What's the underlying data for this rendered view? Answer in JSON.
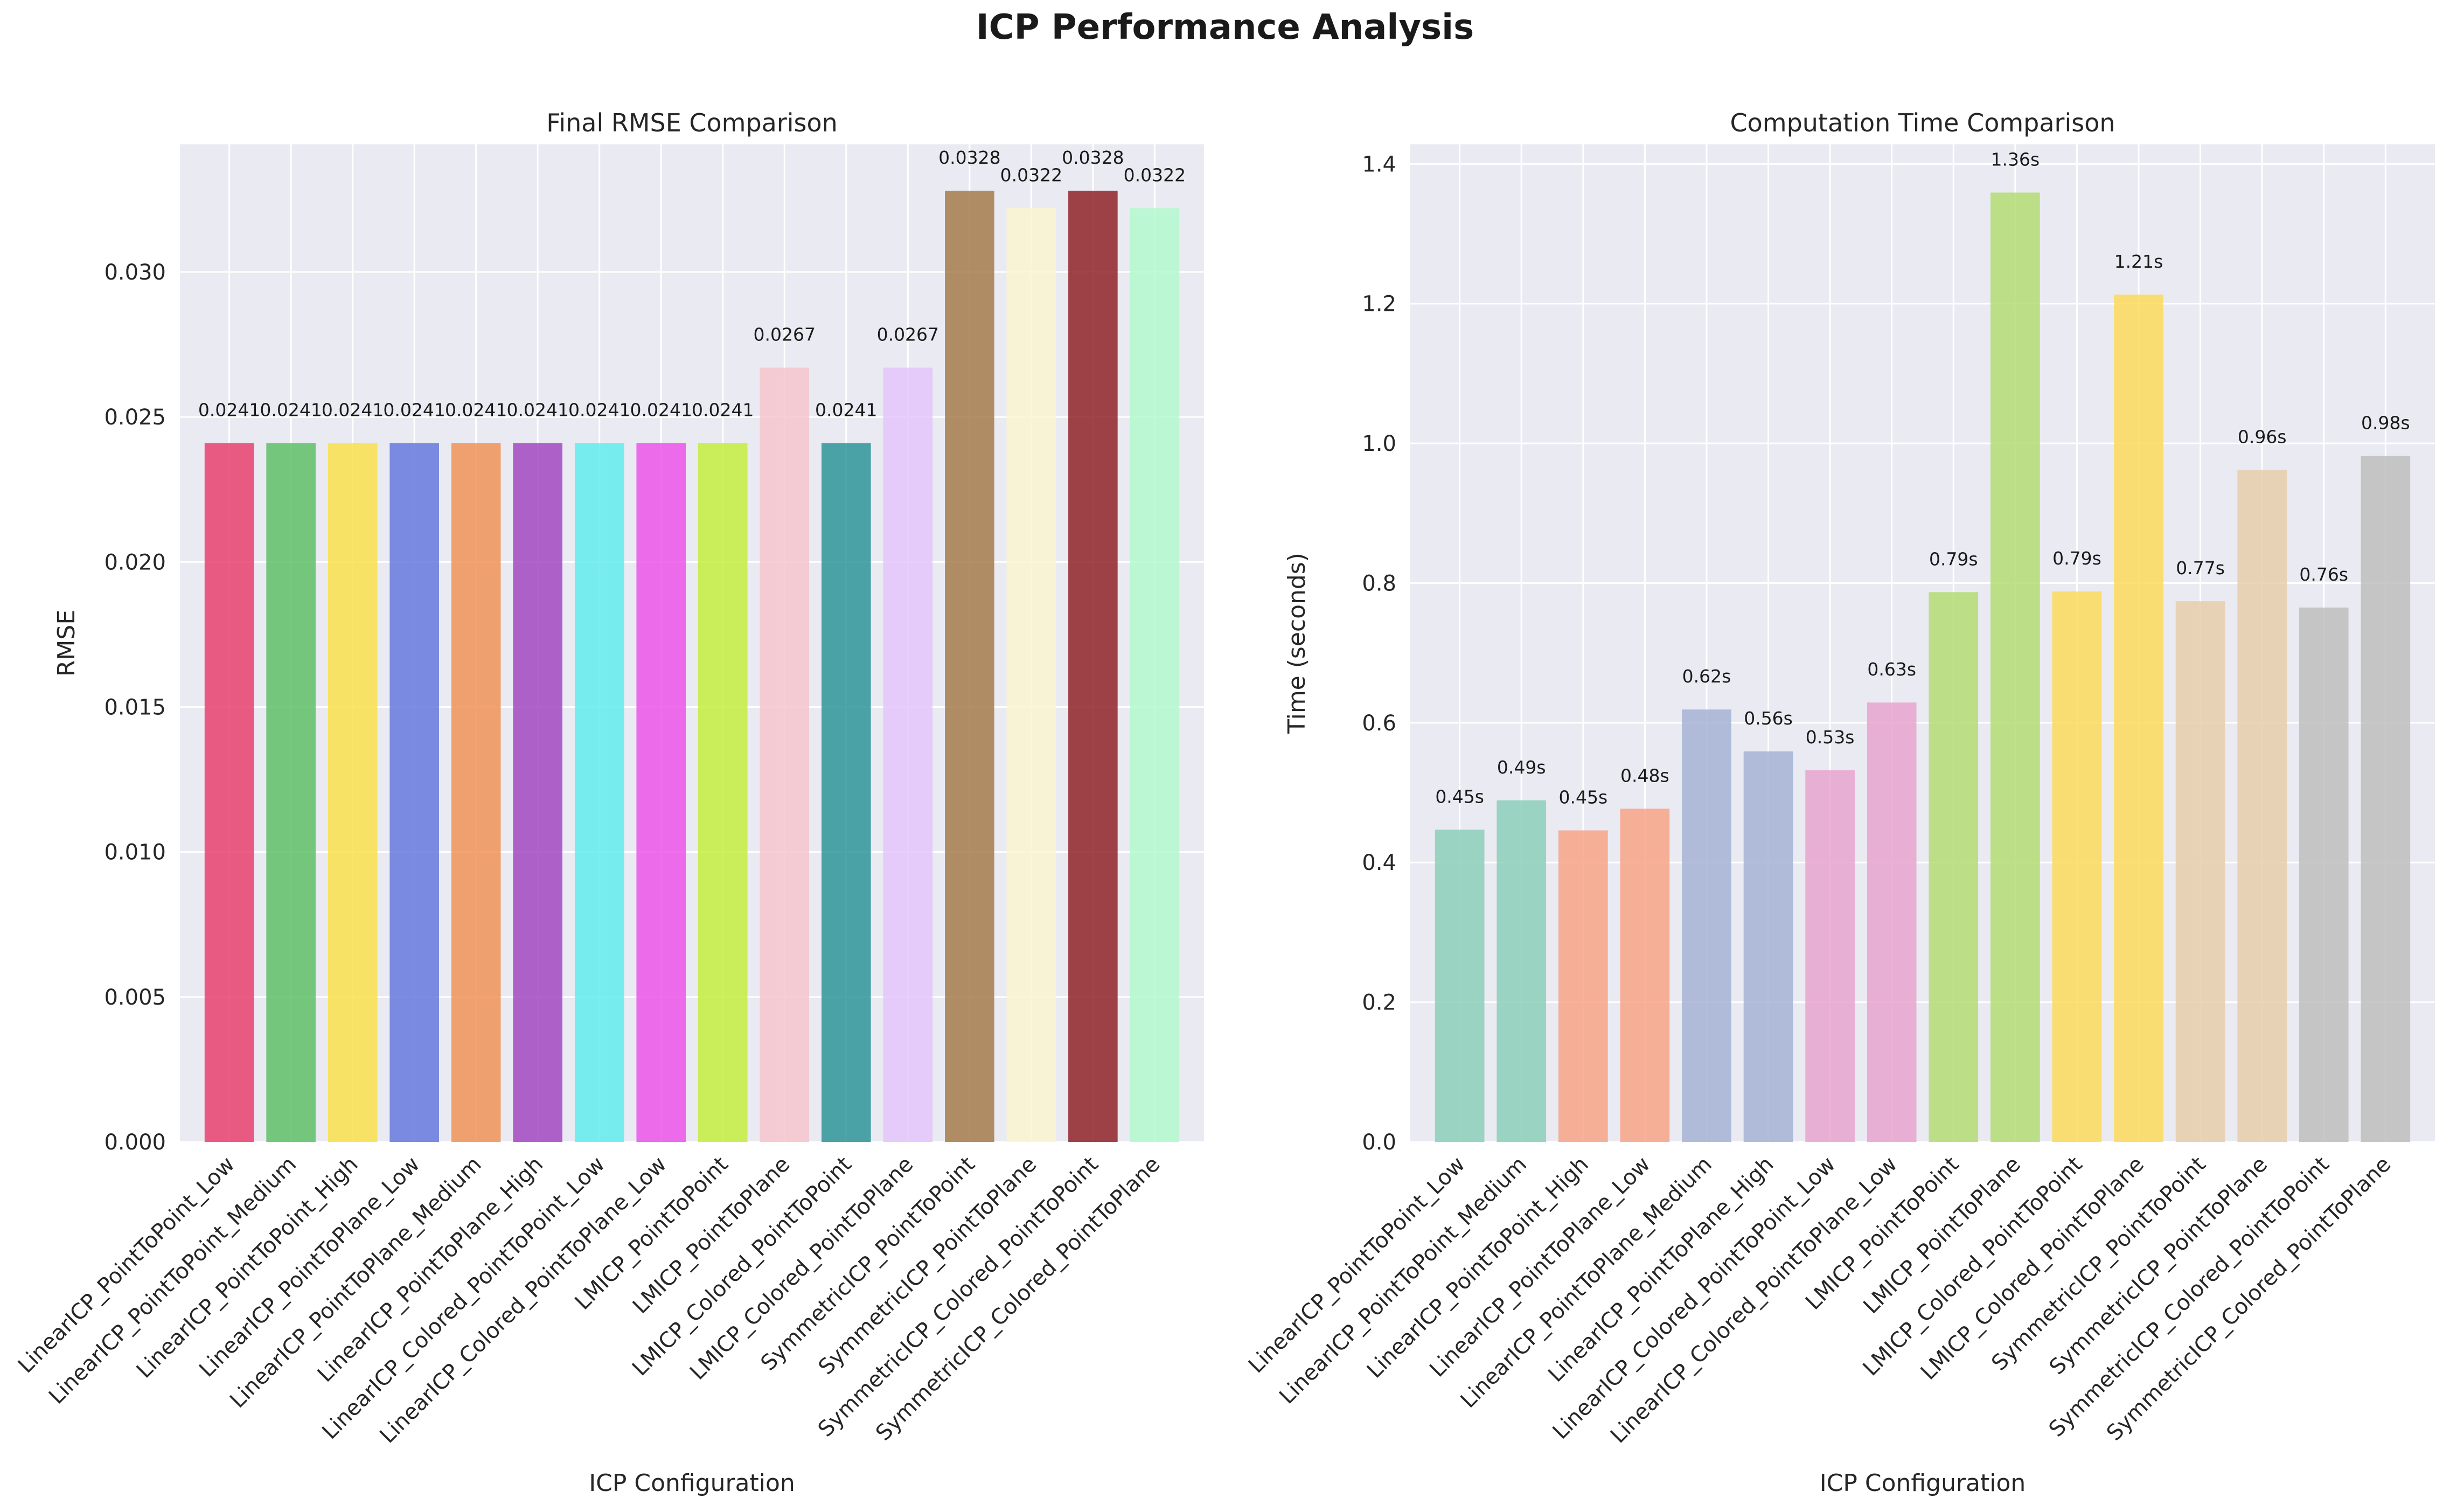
{
  "suptitle": "ICP Performance Analysis",
  "chart_data": [
    {
      "type": "bar",
      "title": "Final RMSE Comparison",
      "xlabel": "ICP Configuration",
      "ylabel": "RMSE",
      "ylim": [
        0,
        0.0344
      ],
      "yticks": [
        0.0,
        0.005,
        0.01,
        0.015,
        0.02,
        0.025,
        0.03
      ],
      "ytick_labels": [
        "0.000",
        "0.005",
        "0.010",
        "0.015",
        "0.020",
        "0.025",
        "0.030"
      ],
      "grid": true,
      "categories": [
        "LinearICP_PointToPoint_Low",
        "LinearICP_PointToPoint_Medium",
        "LinearICP_PointToPoint_High",
        "LinearICP_PointToPlane_Low",
        "LinearICP_PointToPlane_Medium",
        "LinearICP_PointToPlane_High",
        "LinearICP_Colored_PointToPoint_Low",
        "LinearICP_Colored_PointToPlane_Low",
        "LMICP_PointToPoint",
        "LMICP_PointToPlane",
        "LMICP_Colored_PointToPoint",
        "LMICP_Colored_PointToPlane",
        "SymmetricICP_PointToPoint",
        "SymmetricICP_PointToPlane",
        "SymmetricICP_Colored_PointToPoint",
        "SymmetricICP_Colored_PointToPlane"
      ],
      "values": [
        0.0241,
        0.0241,
        0.0241,
        0.0241,
        0.0241,
        0.0241,
        0.0241,
        0.0241,
        0.0241,
        0.0267,
        0.0241,
        0.0267,
        0.0328,
        0.0322,
        0.0328,
        0.0322
      ],
      "value_labels": [
        "0.0241",
        "0.0241",
        "0.0241",
        "0.0241",
        "0.0241",
        "0.0241",
        "0.0241",
        "0.0241",
        "0.0241",
        "0.0267",
        "0.0241",
        "0.0267",
        "0.0328",
        "0.0322",
        "0.0328",
        "0.0322"
      ],
      "colors": [
        "#e8416d",
        "#5fc068",
        "#f9e04c",
        "#6579dd",
        "#f09358",
        "#a348c2",
        "#63ecef",
        "#eb55e9",
        "#c4ed3f",
        "#f6c6cc",
        "#2f9599",
        "#e4c5fa",
        "#a67b4c",
        "#faf5cf",
        "#8f2329",
        "#b3f9cc"
      ]
    },
    {
      "type": "bar",
      "title": "Computation Time Comparison",
      "xlabel": "ICP Configuration",
      "ylabel": "Time (seconds)",
      "ylim": [
        0,
        1.428
      ],
      "yticks": [
        0.0,
        0.2,
        0.4,
        0.6,
        0.8,
        1.0,
        1.2,
        1.4
      ],
      "ytick_labels": [
        "0.0",
        "0.2",
        "0.4",
        "0.6",
        "0.8",
        "1.0",
        "1.2",
        "1.4"
      ],
      "grid": true,
      "categories": [
        "LinearICP_PointToPoint_Low",
        "LinearICP_PointToPoint_Medium",
        "LinearICP_PointToPoint_High",
        "LinearICP_PointToPlane_Low",
        "LinearICP_PointToPlane_Medium",
        "LinearICP_PointToPlane_High",
        "LinearICP_Colored_PointToPoint_Low",
        "LinearICP_Colored_PointToPlane_Low",
        "LMICP_PointToPoint",
        "LMICP_PointToPlane",
        "LMICP_Colored_PointToPoint",
        "LMICP_Colored_PointToPlane",
        "SymmetricICP_PointToPoint",
        "SymmetricICP_PointToPlane",
        "SymmetricICP_Colored_PointToPoint",
        "SymmetricICP_Colored_PointToPlane"
      ],
      "values": [
        0.447,
        0.489,
        0.446,
        0.477,
        0.619,
        0.559,
        0.532,
        0.629,
        0.787,
        1.359,
        0.788,
        1.213,
        0.774,
        0.962,
        0.765,
        0.982
      ],
      "value_labels": [
        "0.45s",
        "0.49s",
        "0.45s",
        "0.48s",
        "0.62s",
        "0.56s",
        "0.53s",
        "0.63s",
        "0.79s",
        "1.36s",
        "0.79s",
        "1.21s",
        "0.77s",
        "0.96s",
        "0.76s",
        "0.98s"
      ],
      "colors": [
        "#8ccfb9",
        "#8ccfb9",
        "#f8a587",
        "#f8a587",
        "#a5b3d4",
        "#a5b3d4",
        "#e8a4cf",
        "#e8a4cf",
        "#b4dc73",
        "#b4dc73",
        "#fbdb5c",
        "#fbdb5c",
        "#e7ceab",
        "#e7ceab",
        "#bebebe",
        "#bebebe"
      ]
    }
  ]
}
